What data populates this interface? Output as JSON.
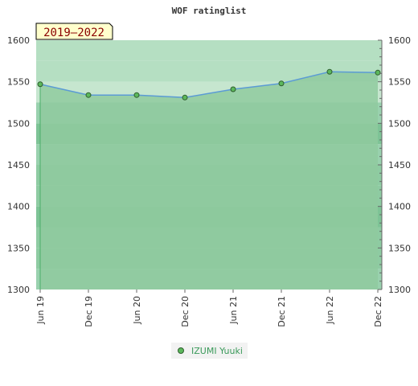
{
  "chart_data": {
    "type": "line",
    "title": "WOF ratinglist",
    "period_label": "2019–2022",
    "categories": [
      "Jun 19",
      "Dec 19",
      "Jun 20",
      "Dec 20",
      "Jun 21",
      "Dec 21",
      "Jun 22",
      "Dec 22"
    ],
    "series": [
      {
        "name": "IZUMI Yuuki",
        "values": [
          1547,
          1534,
          1534,
          1531,
          1541,
          1548,
          1562,
          1561
        ]
      }
    ],
    "ylim": [
      1300,
      1600
    ],
    "yticks": [
      "1300",
      "1350",
      "1400",
      "1450",
      "1500",
      "1550",
      "1600"
    ],
    "grid": false,
    "legend_position": "bottom-center",
    "colors": {
      "line": "#5b9bd5",
      "area": "#8fca9f",
      "marker": "#5cb85c",
      "marker_stroke": "#2e5e2e",
      "period_bg": "#ffffcc",
      "period_text": "#8b0000"
    }
  }
}
